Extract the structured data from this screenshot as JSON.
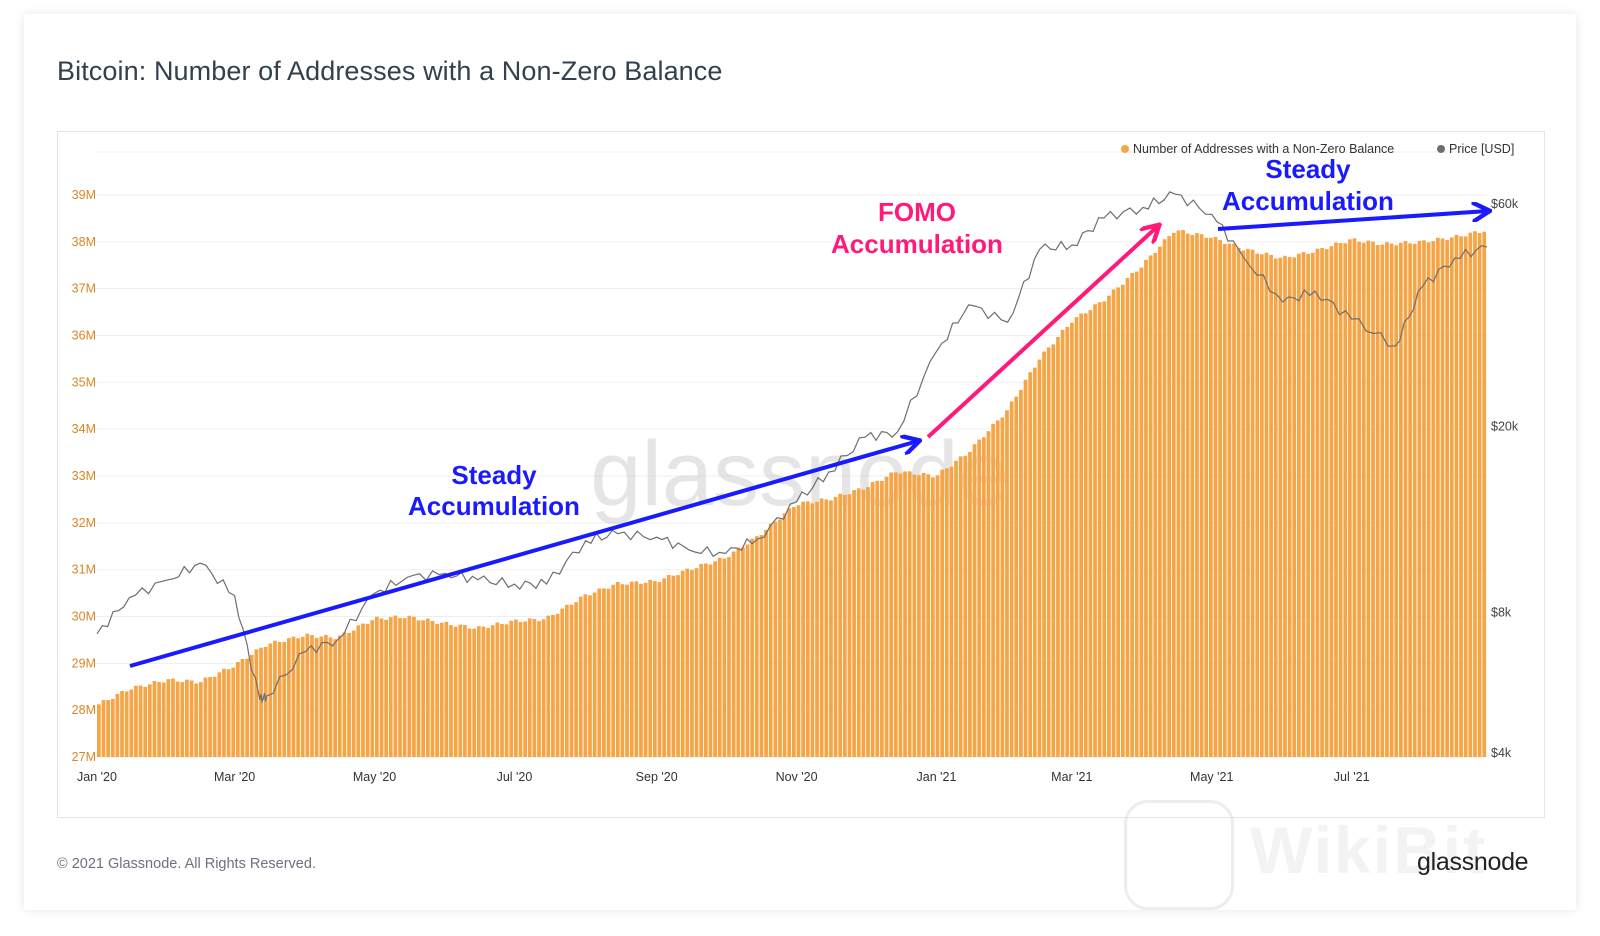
{
  "title": "Bitcoin: Number of Addresses with a Non-Zero Balance",
  "footer": {
    "copyright": "© 2021 Glassnode. All Rights Reserved.",
    "logo": "glassnode"
  },
  "watermarks": {
    "center": "glassnode",
    "corner": "WikiBit"
  },
  "colors": {
    "bars": "#f5a545",
    "price_line": "#6e6e6e",
    "blue_annotation": "#1a1aff",
    "pink_annotation": "#ff1a7a"
  },
  "annotations": [
    {
      "id": "steady-1",
      "lines": [
        "Steady",
        "Accumulation"
      ]
    },
    {
      "id": "fomo",
      "lines": [
        "FOMO",
        "Accumulation"
      ]
    },
    {
      "id": "steady-2",
      "lines": [
        "Steady",
        "Accumulation"
      ]
    }
  ],
  "chart_data": {
    "type": "bar",
    "title": "Bitcoin: Number of Addresses with a Non-Zero Balance",
    "x_axis": {
      "ticks": [
        "Jan '20",
        "Mar '20",
        "May '20",
        "Jul '20",
        "Sep '20",
        "Nov '20",
        "Jan '21",
        "Mar '21",
        "May '21",
        "Jul '21"
      ],
      "range": [
        "2020-01-01",
        "2021-08-29"
      ]
    },
    "y_axis_left": {
      "ticks": [
        "27M",
        "28M",
        "29M",
        "30M",
        "31M",
        "32M",
        "33M",
        "34M",
        "35M",
        "36M",
        "37M",
        "38M",
        "39M"
      ],
      "range": [
        27,
        39
      ],
      "unit": "M"
    },
    "y_axis_right": {
      "ticks": [
        "$4k",
        "$8k",
        "$20k",
        "$60k"
      ],
      "scale": "log",
      "range": [
        4000,
        60000
      ]
    },
    "legend": {
      "position": "top-right",
      "items": [
        "Number of Addresses with a Non-Zero Balance",
        "Price [USD]"
      ]
    },
    "series": [
      {
        "name": "Number of Addresses with a Non-Zero Balance",
        "type": "bar",
        "points": [
          [
            "2020-01-01",
            28.1
          ],
          [
            "2020-01-15",
            28.45
          ],
          [
            "2020-02-01",
            28.65
          ],
          [
            "2020-02-15",
            28.6
          ],
          [
            "2020-03-01",
            28.95
          ],
          [
            "2020-03-15",
            29.4
          ],
          [
            "2020-04-01",
            29.6
          ],
          [
            "2020-04-15",
            29.55
          ],
          [
            "2020-05-01",
            29.95
          ],
          [
            "2020-05-15",
            30.0
          ],
          [
            "2020-06-01",
            29.85
          ],
          [
            "2020-06-15",
            29.75
          ],
          [
            "2020-07-01",
            29.9
          ],
          [
            "2020-07-15",
            29.95
          ],
          [
            "2020-08-01",
            30.45
          ],
          [
            "2020-08-15",
            30.7
          ],
          [
            "2020-09-01",
            30.75
          ],
          [
            "2020-09-15",
            31.0
          ],
          [
            "2020-10-01",
            31.25
          ],
          [
            "2020-10-15",
            31.7
          ],
          [
            "2020-11-01",
            32.4
          ],
          [
            "2020-11-15",
            32.5
          ],
          [
            "2020-12-01",
            32.75
          ],
          [
            "2020-12-15",
            33.1
          ],
          [
            "2021-01-01",
            33.0
          ],
          [
            "2021-01-15",
            33.5
          ],
          [
            "2021-02-01",
            34.4
          ],
          [
            "2021-02-15",
            35.5
          ],
          [
            "2021-03-01",
            36.3
          ],
          [
            "2021-03-15",
            36.75
          ],
          [
            "2021-04-01",
            37.5
          ],
          [
            "2021-04-15",
            38.25
          ],
          [
            "2021-05-01",
            38.1
          ],
          [
            "2021-05-15",
            37.85
          ],
          [
            "2021-06-01",
            37.65
          ],
          [
            "2021-06-15",
            37.8
          ],
          [
            "2021-07-01",
            38.05
          ],
          [
            "2021-07-15",
            37.95
          ],
          [
            "2021-08-01",
            38.0
          ],
          [
            "2021-08-15",
            38.1
          ],
          [
            "2021-08-29",
            38.25
          ]
        ]
      },
      {
        "name": "Price [USD]",
        "type": "line",
        "points": [
          [
            "2020-01-01",
            7200
          ],
          [
            "2020-01-15",
            8600
          ],
          [
            "2020-02-01",
            9400
          ],
          [
            "2020-02-15",
            10200
          ],
          [
            "2020-03-01",
            8700
          ],
          [
            "2020-03-12",
            5200
          ],
          [
            "2020-03-15",
            5300
          ],
          [
            "2020-04-01",
            6600
          ],
          [
            "2020-04-15",
            7000
          ],
          [
            "2020-05-01",
            8800
          ],
          [
            "2020-05-15",
            9500
          ],
          [
            "2020-06-01",
            9700
          ],
          [
            "2020-06-15",
            9400
          ],
          [
            "2020-07-01",
            9200
          ],
          [
            "2020-07-15",
            9200
          ],
          [
            "2020-08-01",
            11400
          ],
          [
            "2020-08-15",
            11800
          ],
          [
            "2020-09-01",
            11600
          ],
          [
            "2020-09-15",
            10900
          ],
          [
            "2020-10-01",
            10700
          ],
          [
            "2020-10-15",
            11500
          ],
          [
            "2020-11-01",
            13800
          ],
          [
            "2020-11-15",
            16000
          ],
          [
            "2020-12-01",
            19000
          ],
          [
            "2020-12-15",
            19500
          ],
          [
            "2021-01-01",
            29000
          ],
          [
            "2021-01-15",
            36500
          ],
          [
            "2021-02-01",
            33500
          ],
          [
            "2021-02-15",
            48000
          ],
          [
            "2021-03-01",
            49000
          ],
          [
            "2021-03-15",
            56000
          ],
          [
            "2021-04-01",
            59000
          ],
          [
            "2021-04-15",
            63000
          ],
          [
            "2021-05-01",
            57000
          ],
          [
            "2021-05-15",
            46000
          ],
          [
            "2021-06-01",
            37000
          ],
          [
            "2021-06-15",
            39000
          ],
          [
            "2021-07-01",
            34000
          ],
          [
            "2021-07-20",
            29800
          ],
          [
            "2021-08-01",
            40000
          ],
          [
            "2021-08-15",
            46000
          ],
          [
            "2021-08-29",
            48500
          ]
        ]
      }
    ]
  }
}
